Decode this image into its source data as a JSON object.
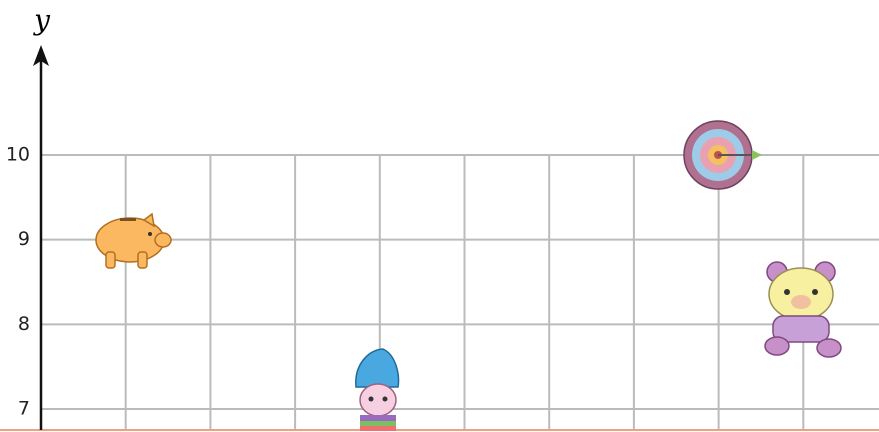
{
  "axis": {
    "label": "y",
    "yticks": [
      7,
      8,
      9,
      10
    ]
  }
}
